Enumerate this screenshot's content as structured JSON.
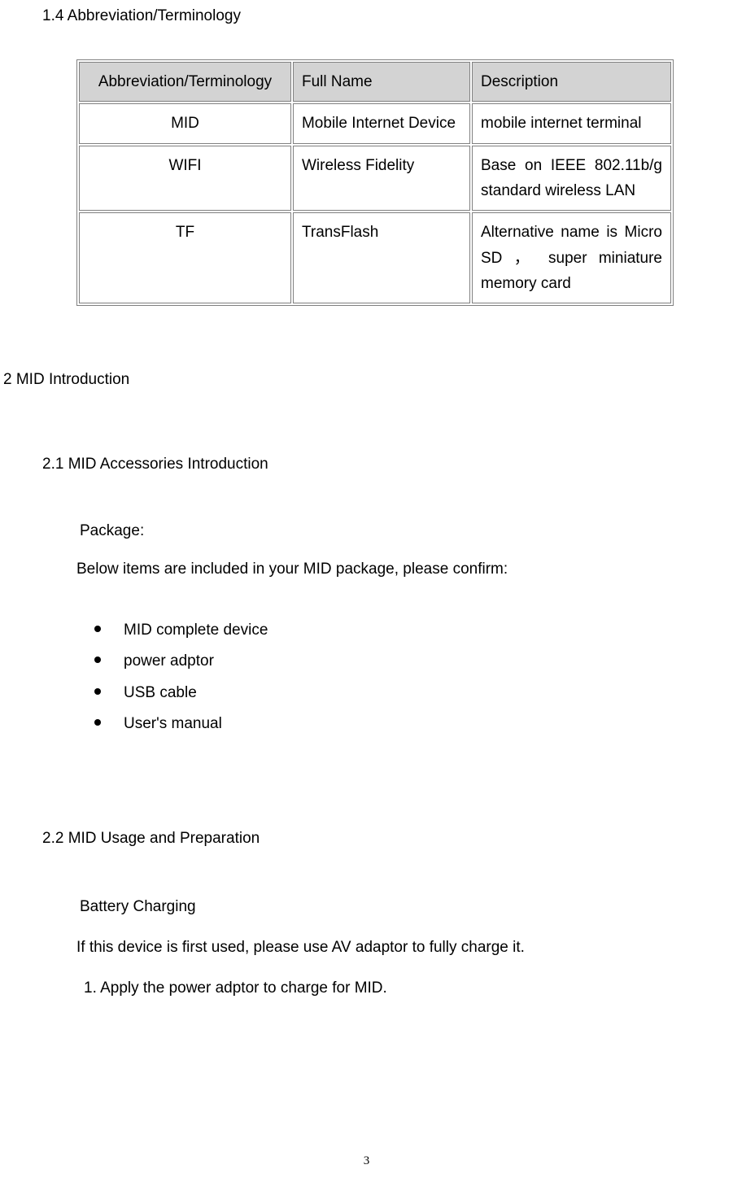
{
  "section_1_4": "1.4 Abbreviation/Terminology",
  "table": {
    "headers": [
      "Abbreviation/Terminology",
      "Full Name",
      "Description"
    ],
    "rows": [
      {
        "abbr": "MID",
        "full": "Mobile Internet Device",
        "desc": "mobile internet terminal"
      },
      {
        "abbr": "WIFI",
        "full": "Wireless Fidelity",
        "desc": "Base on IEEE 802.11b/g standard wireless LAN"
      },
      {
        "abbr": "TF",
        "full": "TransFlash",
        "desc": "Alternative name is Micro SD ， super miniature memory card"
      }
    ]
  },
  "section_2": "2 MID Introduction",
  "section_2_1": "2.1 MID Accessories Introduction",
  "package_label": "Package:",
  "package_text": "Below items are included in your MID package, please confirm:",
  "bullets": [
    "MID complete device",
    "power adptor",
    "USB cable",
    "User's manual"
  ],
  "section_2_2": "2.2 MID Usage and Preparation",
  "battery_label": "Battery Charging",
  "charging_text": "If this device is first used, please use AV adaptor to fully charge it.",
  "step_text": "1. Apply the power adptor to charge for MID.",
  "page_number": "3"
}
